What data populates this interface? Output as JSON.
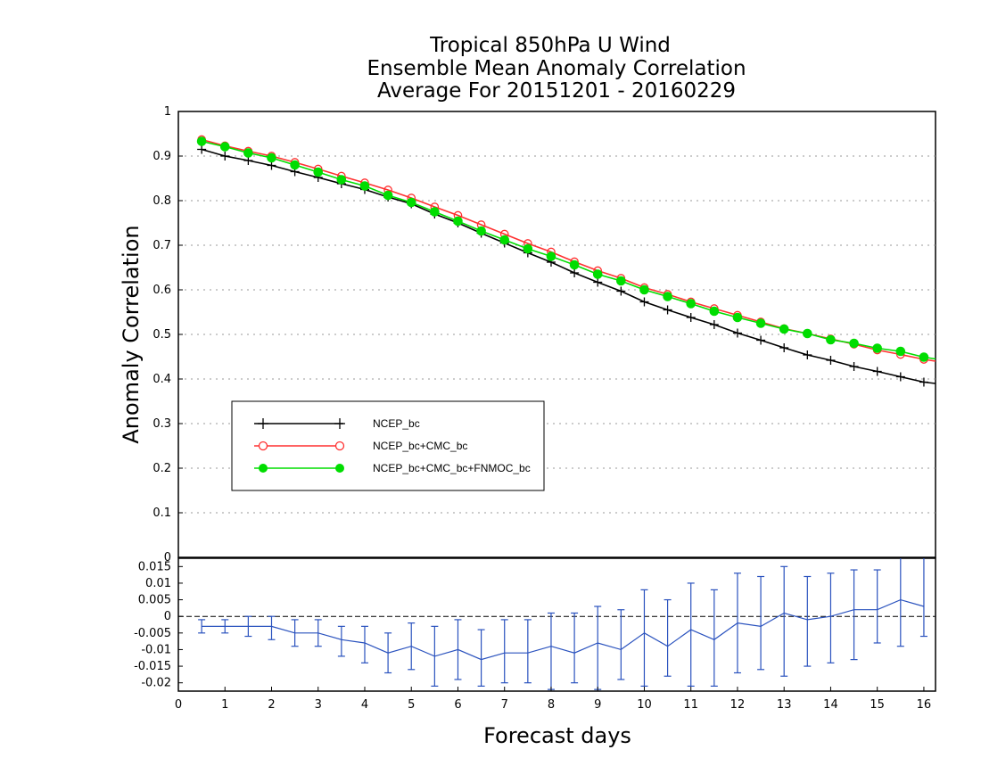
{
  "chart_data": [
    {
      "type": "line",
      "title": [
        "Tropical 850hPa U Wind",
        "Ensemble Mean Anomaly Correlation",
        "Average For 20151201 - 20160229"
      ],
      "xlabel": "Forecast days",
      "ylabel": "Anomaly Correlation",
      "xlim": [
        0,
        16.25
      ],
      "ylim": [
        0,
        1
      ],
      "yticks": [
        "0",
        "0.1",
        "0.2",
        "0.3",
        "0.4",
        "0.5",
        "0.6",
        "0.7",
        "0.8",
        "0.9",
        "1"
      ],
      "grid": "horizontal dotted",
      "legend_position": "lower-left",
      "x": [
        0.5,
        1,
        1.5,
        2,
        2.5,
        3,
        3.5,
        4,
        4.5,
        5,
        5.5,
        6,
        6.5,
        7,
        7.5,
        8,
        8.5,
        9,
        9.5,
        10,
        10.5,
        11,
        11.5,
        12,
        12.5,
        13,
        13.5,
        14,
        14.5,
        15,
        15.5,
        16,
        16.25
      ],
      "series": [
        {
          "name": "NCEP_bc",
          "color": "#000000",
          "marker": "plus",
          "values": [
            0.915,
            0.9,
            0.89,
            0.879,
            0.865,
            0.852,
            0.838,
            0.825,
            0.808,
            0.793,
            0.77,
            0.75,
            0.727,
            0.705,
            0.683,
            0.662,
            0.638,
            0.617,
            0.597,
            0.573,
            0.555,
            0.538,
            0.522,
            0.503,
            0.487,
            0.47,
            0.454,
            0.442,
            0.428,
            0.417,
            0.405,
            0.393,
            0.39
          ]
        },
        {
          "name": "NCEP_bc+CMC_bc",
          "color": "#ff3030",
          "marker": "open-circle",
          "values": [
            0.937,
            0.923,
            0.911,
            0.9,
            0.886,
            0.871,
            0.855,
            0.84,
            0.824,
            0.806,
            0.786,
            0.767,
            0.746,
            0.725,
            0.704,
            0.685,
            0.663,
            0.643,
            0.626,
            0.605,
            0.59,
            0.573,
            0.558,
            0.543,
            0.528,
            0.513,
            0.502,
            0.49,
            0.478,
            0.465,
            0.455,
            0.444,
            0.44
          ]
        },
        {
          "name": "NCEP_bc+CMC_bc+FNMOC_bc",
          "color": "#00dd00",
          "marker": "filled-circle",
          "values": [
            0.933,
            0.921,
            0.907,
            0.896,
            0.88,
            0.864,
            0.847,
            0.833,
            0.812,
            0.796,
            0.775,
            0.754,
            0.732,
            0.712,
            0.692,
            0.675,
            0.656,
            0.635,
            0.62,
            0.6,
            0.585,
            0.569,
            0.552,
            0.538,
            0.525,
            0.512,
            0.502,
            0.488,
            0.48,
            0.469,
            0.462,
            0.449,
            0.445
          ]
        }
      ]
    },
    {
      "type": "line",
      "title": "",
      "xlabel": "Forecast days",
      "ylabel": "",
      "xlim": [
        0,
        16.25
      ],
      "ylim": [
        -0.0225,
        0.0175
      ],
      "yticks": [
        "-0.02",
        "-0.015",
        "-0.01",
        "-0.005",
        "0",
        "0.005",
        "0.01",
        "0.015"
      ],
      "xticks": [
        "0",
        "1",
        "2",
        "3",
        "4",
        "5",
        "6",
        "7",
        "8",
        "9",
        "10",
        "11",
        "12",
        "13",
        "14",
        "15",
        "16"
      ],
      "zero_line": true,
      "series": [
        {
          "name": "",
          "color": "#2a52be",
          "style": "line with error bars",
          "x": [
            0.5,
            1,
            1.5,
            2,
            2.5,
            3,
            3.5,
            4,
            4.5,
            5,
            5.5,
            6,
            6.5,
            7,
            7.5,
            8,
            8.5,
            9,
            9.5,
            10,
            10.5,
            11,
            11.5,
            12,
            12.5,
            13,
            13.5,
            14,
            14.5,
            15,
            15.5,
            16
          ],
          "values": [
            -0.003,
            -0.003,
            -0.003,
            -0.003,
            -0.005,
            -0.005,
            -0.007,
            -0.008,
            -0.011,
            -0.009,
            -0.012,
            -0.01,
            -0.013,
            -0.011,
            -0.011,
            -0.009,
            -0.011,
            -0.008,
            -0.01,
            -0.005,
            -0.009,
            -0.004,
            -0.007,
            -0.002,
            -0.003,
            0.001,
            -0.001,
            0.0,
            0.002,
            0.002,
            0.005,
            0.003
          ],
          "error_low": [
            -0.005,
            -0.005,
            -0.006,
            -0.007,
            -0.009,
            -0.009,
            -0.012,
            -0.014,
            -0.017,
            -0.016,
            -0.021,
            -0.019,
            -0.021,
            -0.02,
            -0.02,
            -0.022,
            -0.02,
            -0.022,
            -0.019,
            -0.021,
            -0.018,
            -0.021,
            -0.021,
            -0.017,
            -0.016,
            -0.018,
            -0.015,
            -0.014,
            -0.013,
            -0.008,
            -0.009,
            -0.006
          ],
          "error_high": [
            -0.001,
            -0.001,
            0.0,
            0.0,
            -0.001,
            -0.001,
            -0.003,
            -0.003,
            -0.005,
            -0.002,
            -0.003,
            -0.001,
            -0.004,
            -0.001,
            -0.001,
            0.001,
            0.001,
            0.003,
            0.002,
            0.008,
            0.005,
            0.01,
            0.008,
            0.013,
            0.012,
            0.015,
            0.012,
            0.013,
            0.014,
            0.014,
            0.019,
            0.018
          ]
        }
      ]
    }
  ]
}
